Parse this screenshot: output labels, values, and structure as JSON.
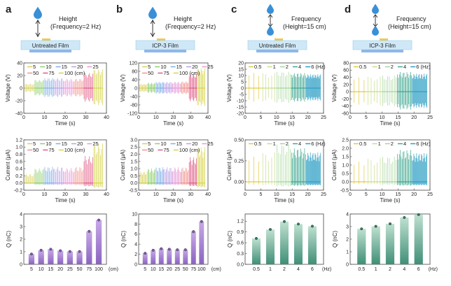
{
  "panels": [
    {
      "label": "a",
      "cap1": "Height",
      "cap2": "(Frequency=2 Hz)",
      "film": "Untreated Film",
      "drops": 1
    },
    {
      "label": "b",
      "cap1": "Height",
      "cap2": "(Frequency=2 Hz)",
      "film": "ICP-3 Film",
      "drops": 1
    },
    {
      "label": "c",
      "cap1": "Frequency",
      "cap2": "(Height=15 cm)",
      "film": "Untreated Film",
      "drops": 2
    },
    {
      "label": "d",
      "cap1": "Frequency",
      "cap2": "(Height=15 cm)",
      "film": "ICP-3 Film",
      "drops": 2
    }
  ],
  "colors": {
    "height_series": [
      "#d8d25a",
      "#8fcf6e",
      "#7fb0e8",
      "#b9a3e6",
      "#e79bd8",
      "#f0958f",
      "#e05a86",
      "#d6d44a"
    ],
    "freq_series": [
      "#e3c93e",
      "#c9dc88",
      "#a4d69a",
      "#3ea891",
      "#2d9fc5"
    ],
    "bar_purple_top": "#c7a9e6",
    "bar_purple_bottom": "#8a63c0",
    "bar_green_top": "#bfe0d0",
    "bar_green_bottom": "#3f8f77",
    "drop": "#3a90d6",
    "film": "#cfe8f8"
  },
  "chart_data": [
    {
      "panel": "a",
      "type": "line",
      "xlabel": "Time (s)",
      "ylabel": "Voltage (V)",
      "xlim": [
        0,
        40
      ],
      "ylim": [
        -40,
        40
      ],
      "xticks": [
        "0",
        "10",
        "20",
        "30",
        "40"
      ],
      "yticks": [
        "-40",
        "-20",
        "0",
        "20",
        "40"
      ],
      "legend_rows": [
        [
          "5",
          "10",
          "15",
          "20",
          "25"
        ],
        [
          "50",
          "75",
          "100 (cm)"
        ]
      ],
      "series": [
        {
          "name": "5",
          "amp": 7
        },
        {
          "name": "10",
          "amp": 13
        },
        {
          "name": "15",
          "amp": 16
        },
        {
          "name": "20",
          "amp": 16
        },
        {
          "name": "25",
          "amp": 15
        },
        {
          "name": "50",
          "amp": 15
        },
        {
          "name": "75",
          "amp": 24
        },
        {
          "name": "100",
          "amp": 30
        }
      ]
    },
    {
      "panel": "b",
      "type": "line",
      "xlabel": "Time (s)",
      "ylabel": "Voltage (V)",
      "xlim": [
        0,
        40
      ],
      "ylim": [
        -120,
        120
      ],
      "xticks": [
        "0",
        "10",
        "20",
        "30",
        "40"
      ],
      "yticks": [
        "-120",
        "-80",
        "-40",
        "0",
        "40",
        "80",
        "120"
      ],
      "legend_rows": [
        [
          "5",
          "10",
          "15",
          "20",
          "25"
        ],
        [
          "50",
          "75",
          "100 (cm)"
        ]
      ],
      "series": [
        {
          "name": "5",
          "amp": 20
        },
        {
          "name": "10",
          "amp": 25
        },
        {
          "name": "15",
          "amp": 30
        },
        {
          "name": "20",
          "amp": 30
        },
        {
          "name": "25",
          "amp": 30
        },
        {
          "name": "50",
          "amp": 32
        },
        {
          "name": "75",
          "amp": 70
        },
        {
          "name": "100",
          "amp": 95
        }
      ]
    },
    {
      "panel": "c",
      "type": "line",
      "xlabel": "Time (s)",
      "ylabel": "Voltage (V)",
      "xlim": [
        0,
        25
      ],
      "ylim": [
        -20,
        20
      ],
      "xticks": [
        "0",
        "5",
        "10",
        "15",
        "20",
        "25"
      ],
      "yticks": [
        "-20",
        "-15",
        "-10",
        "-5",
        "0",
        "5",
        "10",
        "15",
        "20"
      ],
      "legend_rows": [
        [
          "0.5",
          "1",
          "2",
          "4",
          "6 (Hz)"
        ]
      ],
      "series": [
        {
          "name": "0.5",
          "amp": 12
        },
        {
          "name": "1",
          "amp": 12
        },
        {
          "name": "2",
          "amp": 13
        },
        {
          "name": "4",
          "amp": 12
        },
        {
          "name": "6",
          "amp": 11
        }
      ]
    },
    {
      "panel": "d",
      "type": "line",
      "xlabel": "Time (s)",
      "ylabel": "Voltage (V)",
      "xlim": [
        0,
        25
      ],
      "ylim": [
        -60,
        80
      ],
      "xticks": [
        "0",
        "5",
        "10",
        "15",
        "20",
        "25"
      ],
      "yticks": [
        "-60",
        "-40",
        "-20",
        "0",
        "20",
        "40",
        "60",
        "80"
      ],
      "legend_rows": [
        [
          "0.5",
          "1",
          "2",
          "4",
          "6 (Hz)"
        ]
      ],
      "series": [
        {
          "name": "0.5",
          "amp": 40
        },
        {
          "name": "1",
          "amp": 42
        },
        {
          "name": "2",
          "amp": 45
        },
        {
          "name": "4",
          "amp": 55
        },
        {
          "name": "6",
          "amp": 50
        }
      ]
    },
    {
      "panel": "a",
      "type": "line",
      "xlabel": "Time (s)",
      "ylabel": "Current (μA)",
      "xlim": [
        0,
        40
      ],
      "ylim": [
        -0.2,
        1.2
      ],
      "xticks": [
        "0",
        "10",
        "20",
        "30",
        "40"
      ],
      "yticks": [
        "-0.2",
        "0.0",
        "0.2",
        "0.4",
        "0.6",
        "0.8",
        "1.0",
        "1.2"
      ],
      "legend_rows": [
        [
          "5",
          "10",
          "15",
          "20",
          "25"
        ],
        [
          "50",
          "75",
          "100 (cm)"
        ]
      ],
      "series": [
        {
          "name": "5",
          "amp": 0.25
        },
        {
          "name": "10",
          "amp": 0.4
        },
        {
          "name": "15",
          "amp": 0.45
        },
        {
          "name": "20",
          "amp": 0.45
        },
        {
          "name": "25",
          "amp": 0.42
        },
        {
          "name": "50",
          "amp": 0.45
        },
        {
          "name": "75",
          "amp": 0.75
        },
        {
          "name": "100",
          "amp": 1.1
        }
      ]
    },
    {
      "panel": "b",
      "type": "line",
      "xlabel": "Time (s)",
      "ylabel": "Current (μA)",
      "xlim": [
        0,
        40
      ],
      "ylim": [
        -0.5,
        3.0
      ],
      "xticks": [
        "0",
        "10",
        "20",
        "30",
        "40"
      ],
      "yticks": [
        "-0.5",
        "0.0",
        "0.5",
        "1.0",
        "1.5",
        "2.0",
        "2.5",
        "3.0"
      ],
      "legend_rows": [
        [
          "5",
          "10",
          "15",
          "20",
          "25"
        ],
        [
          "50",
          "75",
          "100 (cm)"
        ]
      ],
      "series": [
        {
          "name": "5",
          "amp": 0.8
        },
        {
          "name": "10",
          "amp": 1.0
        },
        {
          "name": "15",
          "amp": 1.1
        },
        {
          "name": "20",
          "amp": 1.1
        },
        {
          "name": "25",
          "amp": 1.1
        },
        {
          "name": "50",
          "amp": 1.1
        },
        {
          "name": "75",
          "amp": 1.8
        },
        {
          "name": "100",
          "amp": 2.5
        }
      ]
    },
    {
      "panel": "c",
      "type": "line",
      "xlabel": "Time (s)",
      "ylabel": "Current (μA)",
      "xlim": [
        0,
        25
      ],
      "ylim": [
        -0.1,
        0.5
      ],
      "xticks": [
        "0",
        "5",
        "10",
        "15",
        "20",
        "25"
      ],
      "yticks": [
        "0.00",
        "0.25",
        "0.50"
      ],
      "legend_rows": [
        [
          "0.5",
          "1",
          "2",
          "4",
          "6 (Hz)"
        ]
      ],
      "series": [
        {
          "name": "0.5",
          "amp": 0.3
        },
        {
          "name": "1",
          "amp": 0.35
        },
        {
          "name": "2",
          "amp": 0.45
        },
        {
          "name": "4",
          "amp": 0.4
        },
        {
          "name": "6",
          "amp": 0.35
        }
      ]
    },
    {
      "panel": "d",
      "type": "line",
      "xlabel": "Time (s)",
      "ylabel": "Current (μA)",
      "xlim": [
        0,
        25
      ],
      "ylim": [
        -0.5,
        2.5
      ],
      "xticks": [
        "0",
        "5",
        "10",
        "15",
        "20",
        "25"
      ],
      "yticks": [
        "-0.5",
        "0.0",
        "0.5",
        "1.0",
        "1.5",
        "2.0",
        "2.5"
      ],
      "legend_rows": [
        [
          "0.5",
          "1",
          "2",
          "4",
          "6 (Hz)"
        ]
      ],
      "series": [
        {
          "name": "0.5",
          "amp": 1.2
        },
        {
          "name": "1",
          "amp": 1.4
        },
        {
          "name": "2",
          "amp": 1.5
        },
        {
          "name": "4",
          "amp": 1.9
        },
        {
          "name": "6",
          "amp": 1.7
        }
      ]
    },
    {
      "panel": "a",
      "type": "bar",
      "ylabel": "Q (nC)",
      "ylim": [
        0,
        4
      ],
      "yticks": [
        "0",
        "1",
        "2",
        "3",
        "4"
      ],
      "categories": [
        "5",
        "10",
        "15",
        "20",
        "25",
        "50",
        "75",
        "100"
      ],
      "unit": "(cm)",
      "values": [
        0.82,
        1.12,
        1.2,
        1.08,
        1.02,
        1.02,
        2.62,
        3.52
      ],
      "palette": "purple"
    },
    {
      "panel": "b",
      "type": "bar",
      "ylabel": "Q (nC)",
      "ylim": [
        0,
        10
      ],
      "yticks": [
        "0",
        "2",
        "4",
        "6",
        "8",
        "10"
      ],
      "categories": [
        "5",
        "10",
        "15",
        "20",
        "25",
        "50",
        "75",
        "100"
      ],
      "unit": "(cm)",
      "values": [
        2.2,
        2.8,
        3.1,
        3.0,
        2.9,
        2.9,
        6.5,
        8.5
      ],
      "palette": "purple"
    },
    {
      "panel": "c",
      "type": "bar",
      "ylabel": "Q (nC)",
      "ylim": [
        0,
        1.4
      ],
      "yticks": [
        "0.0",
        "0.3",
        "0.6",
        "0.9",
        "1.2"
      ],
      "categories": [
        "0.5",
        "1",
        "2",
        "4",
        "6"
      ],
      "unit": "(Hz)",
      "values": [
        0.72,
        0.97,
        1.19,
        1.12,
        1.06
      ],
      "palette": "green"
    },
    {
      "panel": "d",
      "type": "bar",
      "ylabel": "Q (nC)",
      "ylim": [
        0,
        4
      ],
      "yticks": [
        "0",
        "1",
        "2",
        "3",
        "4"
      ],
      "categories": [
        "0.5",
        "1",
        "2",
        "4",
        "6"
      ],
      "unit": "(Hz)",
      "values": [
        2.82,
        3.02,
        3.22,
        3.72,
        3.95
      ],
      "palette": "green"
    }
  ]
}
